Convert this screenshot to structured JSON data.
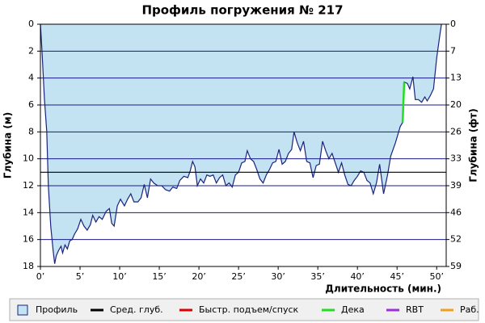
{
  "chart_data": {
    "type": "dive-profile",
    "title": "Профиль погружения № 217",
    "x_label": "Длительность (мин.)",
    "y_label": "Глубина (м)",
    "y2_label": "Глубина (фт)",
    "xlim": [
      0,
      51.2
    ],
    "xticks": [
      {
        "value": 0,
        "label": "0’"
      },
      {
        "value": 5,
        "label": "5’"
      },
      {
        "value": 10,
        "label": "10’"
      },
      {
        "value": 15,
        "label": "15’"
      },
      {
        "value": 20,
        "label": "20’"
      },
      {
        "value": 25,
        "label": "25’"
      },
      {
        "value": 30,
        "label": "30’"
      },
      {
        "value": 35,
        "label": "35’"
      },
      {
        "value": 40,
        "label": "40’"
      },
      {
        "value": 45,
        "label": "45’"
      },
      {
        "value": 50,
        "label": "50’"
      }
    ],
    "ylim": [
      18,
      0
    ],
    "yticks": [
      0,
      2,
      4,
      6,
      8,
      10,
      12,
      14,
      16,
      18
    ],
    "y2lim": [
      59.06,
      0
    ],
    "y2ticks": [
      0,
      {
        "value": 6.56,
        "label": "7"
      },
      {
        "value": 13.12,
        "label": "13"
      },
      {
        "value": 19.69,
        "label": "20"
      },
      {
        "value": 26.25,
        "label": "26"
      },
      {
        "value": 32.81,
        "label": "33"
      },
      {
        "value": 39.37,
        "label": "39"
      },
      {
        "value": 45.93,
        "label": "46"
      },
      {
        "value": 52.49,
        "label": "52"
      },
      {
        "value": 59.06,
        "label": "59"
      }
    ],
    "grid": true,
    "grid_color": "#1a1a8c",
    "legend": "bottom",
    "series": [
      {
        "name": "Профиль",
        "color": "#c3e2f2",
        "line_color": "#1a237e",
        "x": [
          0,
          0.2,
          0.5,
          0.8,
          1.0,
          1.3,
          1.6,
          1.8,
          2.0,
          2.3,
          2.6,
          2.8,
          3.1,
          3.4,
          3.7,
          4.0,
          4.3,
          4.7,
          5.1,
          5.5,
          5.9,
          6.3,
          6.6,
          7.0,
          7.4,
          7.8,
          8.3,
          8.7,
          9.0,
          9.3,
          9.7,
          10.1,
          10.6,
          11.0,
          11.4,
          11.8,
          12.3,
          12.7,
          13.1,
          13.5,
          13.9,
          14.3,
          14.8,
          15.3,
          15.8,
          16.3,
          16.7,
          17.2,
          17.6,
          18.1,
          18.6,
          18.9,
          19.2,
          19.5,
          19.8,
          20.2,
          20.6,
          21.0,
          21.4,
          21.8,
          22.2,
          22.6,
          23.0,
          23.4,
          23.8,
          24.2,
          24.6,
          25.0,
          25.4,
          25.8,
          26.1,
          26.5,
          26.9,
          27.3,
          27.7,
          28.1,
          28.5,
          28.9,
          29.3,
          29.7,
          30.1,
          30.5,
          30.9,
          31.3,
          31.7,
          32.0,
          32.4,
          32.8,
          33.2,
          33.6,
          34.0,
          34.4,
          34.8,
          35.2,
          35.6,
          36.0,
          36.4,
          36.8,
          37.2,
          37.6,
          38.0,
          38.4,
          38.8,
          39.2,
          39.6,
          40.0,
          40.4,
          40.8,
          41.2,
          41.6,
          42.0,
          42.4,
          42.8,
          43.3,
          43.8,
          44.2,
          44.8,
          45.4,
          45.7,
          45.9,
          46.3,
          46.6,
          47.0,
          47.3,
          47.7,
          48.1,
          48.5,
          48.8,
          49.2,
          49.6,
          50.0,
          50.4,
          50.6
        ],
        "values": [
          0,
          2,
          5.5,
          8,
          12,
          15,
          16.8,
          17.8,
          17.2,
          16.8,
          16.5,
          17,
          16.4,
          16.7,
          16.1,
          16,
          15.6,
          15.2,
          14.5,
          15,
          15.3,
          14.9,
          14.2,
          14.7,
          14.3,
          14.5,
          13.9,
          13.7,
          14.8,
          15,
          13.5,
          13,
          13.5,
          13,
          12.6,
          13.2,
          13.2,
          12.9,
          11.9,
          12.9,
          11.5,
          11.8,
          12,
          12,
          12.3,
          12.4,
          12.1,
          12.2,
          11.6,
          11.3,
          11.4,
          10.9,
          10.2,
          10.6,
          12,
          11.5,
          11.8,
          11.2,
          11.3,
          11.2,
          11.8,
          11.4,
          11.2,
          12,
          11.8,
          12.1,
          11.2,
          11,
          10.3,
          10.2,
          9.4,
          10,
          10.2,
          10.8,
          11.5,
          11.8,
          11.2,
          10.8,
          10.3,
          10.2,
          9.3,
          10.4,
          10.2,
          9.6,
          9.3,
          8.0,
          8.8,
          9.4,
          8.7,
          10.2,
          10.3,
          11.4,
          10.5,
          10.4,
          8.7,
          9.4,
          10,
          9.6,
          10.3,
          11,
          10.3,
          11.2,
          11.9,
          12,
          11.6,
          11.3,
          10.9,
          11,
          11.6,
          11.8,
          12.6,
          11.8,
          10.4,
          12.6,
          11.2,
          9.8,
          8.8,
          7.6,
          7.3,
          4.3,
          4.4,
          4.8,
          3.9,
          5.6,
          5.6,
          5.8,
          5.4,
          5.7,
          5.3,
          4.8,
          2.5,
          0.8,
          0
        ]
      },
      {
        "name": "Сред. глуб.",
        "color": "#000000",
        "hline": 11.0
      },
      {
        "name": "Быстр. подъем/спуск",
        "color": "#e00000"
      },
      {
        "name": "Дека",
        "color": "#22dd22",
        "x": [
          45.7,
          45.9
        ],
        "values": [
          7.3,
          4.3
        ]
      },
      {
        "name": "RBT",
        "color": "#9b30e0"
      },
      {
        "name": "Раб.",
        "color": "#f0a020"
      }
    ]
  }
}
